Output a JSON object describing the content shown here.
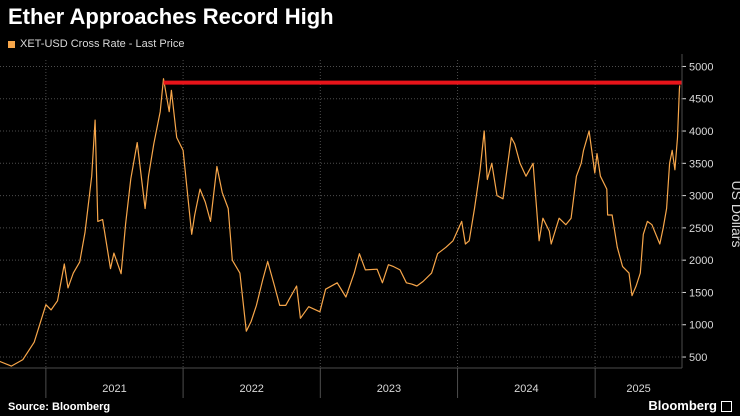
{
  "title": "Ether Approaches Record High",
  "legend_label": "XET-USD Cross Rate - Last Price",
  "source": "Source: Bloomberg",
  "brand": "Bloomberg",
  "colors": {
    "background": "#000000",
    "series": "#f7a64a",
    "reference_line": "#e8141a",
    "grid": "#4d4d4d",
    "text": "#d9d9d9"
  },
  "chart_data": {
    "type": "line",
    "ylabel": "US Dollars",
    "ylim": [
      330,
      5100
    ],
    "y_ticks": [
      500,
      1000,
      1500,
      2000,
      2500,
      3000,
      3500,
      4000,
      4500,
      5000
    ],
    "y_axis_side": "right",
    "x_ticks": [
      "2021",
      "2022",
      "2023",
      "2024",
      "2025"
    ],
    "grid": true,
    "legend_position": "top-left",
    "reference_line": 4750,
    "series": [
      {
        "name": "XET-USD Cross Rate - Last Price",
        "points": [
          [
            "2020-09-01",
            430
          ],
          [
            "2020-10-01",
            360
          ],
          [
            "2020-11-01",
            460
          ],
          [
            "2020-12-01",
            730
          ],
          [
            "2021-01-01",
            1310
          ],
          [
            "2021-01-15",
            1230
          ],
          [
            "2021-02-01",
            1370
          ],
          [
            "2021-02-19",
            1940
          ],
          [
            "2021-03-01",
            1570
          ],
          [
            "2021-03-15",
            1800
          ],
          [
            "2021-04-01",
            1970
          ],
          [
            "2021-04-15",
            2430
          ],
          [
            "2021-05-03",
            3300
          ],
          [
            "2021-05-12",
            4170
          ],
          [
            "2021-05-19",
            2600
          ],
          [
            "2021-06-01",
            2630
          ],
          [
            "2021-06-22",
            1870
          ],
          [
            "2021-07-01",
            2110
          ],
          [
            "2021-07-20",
            1790
          ],
          [
            "2021-08-01",
            2560
          ],
          [
            "2021-08-15",
            3260
          ],
          [
            "2021-09-01",
            3820
          ],
          [
            "2021-09-22",
            2800
          ],
          [
            "2021-10-01",
            3300
          ],
          [
            "2021-10-15",
            3800
          ],
          [
            "2021-11-01",
            4300
          ],
          [
            "2021-11-10",
            4810
          ],
          [
            "2021-11-25",
            4300
          ],
          [
            "2021-12-01",
            4630
          ],
          [
            "2021-12-15",
            3900
          ],
          [
            "2022-01-01",
            3700
          ],
          [
            "2022-01-24",
            2400
          ],
          [
            "2022-02-01",
            2700
          ],
          [
            "2022-02-15",
            3100
          ],
          [
            "2022-03-01",
            2900
          ],
          [
            "2022-03-15",
            2600
          ],
          [
            "2022-04-01",
            3450
          ],
          [
            "2022-04-15",
            3050
          ],
          [
            "2022-05-01",
            2800
          ],
          [
            "2022-05-12",
            2000
          ],
          [
            "2022-06-01",
            1800
          ],
          [
            "2022-06-18",
            900
          ],
          [
            "2022-07-01",
            1050
          ],
          [
            "2022-07-15",
            1300
          ],
          [
            "2022-08-01",
            1700
          ],
          [
            "2022-08-14",
            1980
          ],
          [
            "2022-09-01",
            1600
          ],
          [
            "2022-09-15",
            1300
          ],
          [
            "2022-10-01",
            1300
          ],
          [
            "2022-10-30",
            1600
          ],
          [
            "2022-11-09",
            1100
          ],
          [
            "2022-12-01",
            1280
          ],
          [
            "2022-12-31",
            1200
          ],
          [
            "2023-01-15",
            1550
          ],
          [
            "2023-02-15",
            1650
          ],
          [
            "2023-03-10",
            1430
          ],
          [
            "2023-04-01",
            1800
          ],
          [
            "2023-04-15",
            2100
          ],
          [
            "2023-05-01",
            1850
          ],
          [
            "2023-06-01",
            1860
          ],
          [
            "2023-06-15",
            1650
          ],
          [
            "2023-07-01",
            1930
          ],
          [
            "2023-07-15",
            1900
          ],
          [
            "2023-08-01",
            1850
          ],
          [
            "2023-08-18",
            1650
          ],
          [
            "2023-09-01",
            1630
          ],
          [
            "2023-09-15",
            1600
          ],
          [
            "2023-10-01",
            1670
          ],
          [
            "2023-10-24",
            1800
          ],
          [
            "2023-11-09",
            2100
          ],
          [
            "2023-12-01",
            2200
          ],
          [
            "2023-12-20",
            2300
          ],
          [
            "2024-01-12",
            2600
          ],
          [
            "2024-01-22",
            2250
          ],
          [
            "2024-02-01",
            2300
          ],
          [
            "2024-02-15",
            2800
          ],
          [
            "2024-03-01",
            3400
          ],
          [
            "2024-03-12",
            4000
          ],
          [
            "2024-03-20",
            3250
          ],
          [
            "2024-04-01",
            3500
          ],
          [
            "2024-04-15",
            3000
          ],
          [
            "2024-05-01",
            2950
          ],
          [
            "2024-05-23",
            3900
          ],
          [
            "2024-06-01",
            3800
          ],
          [
            "2024-06-15",
            3500
          ],
          [
            "2024-07-01",
            3300
          ],
          [
            "2024-07-20",
            3500
          ],
          [
            "2024-08-05",
            2300
          ],
          [
            "2024-08-15",
            2650
          ],
          [
            "2024-09-01",
            2450
          ],
          [
            "2024-09-06",
            2250
          ],
          [
            "2024-09-27",
            2650
          ],
          [
            "2024-10-15",
            2550
          ],
          [
            "2024-10-29",
            2650
          ],
          [
            "2024-11-12",
            3300
          ],
          [
            "2024-11-25",
            3500
          ],
          [
            "2024-12-01",
            3700
          ],
          [
            "2024-12-16",
            4000
          ],
          [
            "2024-12-31",
            3350
          ],
          [
            "2025-01-06",
            3650
          ],
          [
            "2025-01-15",
            3300
          ],
          [
            "2025-02-01",
            3100
          ],
          [
            "2025-02-03",
            2700
          ],
          [
            "2025-02-15",
            2700
          ],
          [
            "2025-03-01",
            2200
          ],
          [
            "2025-03-15",
            1900
          ],
          [
            "2025-04-01",
            1800
          ],
          [
            "2025-04-09",
            1450
          ],
          [
            "2025-04-20",
            1600
          ],
          [
            "2025-05-01",
            1800
          ],
          [
            "2025-05-09",
            2400
          ],
          [
            "2025-05-20",
            2600
          ],
          [
            "2025-06-01",
            2550
          ],
          [
            "2025-06-22",
            2250
          ],
          [
            "2025-07-01",
            2500
          ],
          [
            "2025-07-10",
            2800
          ],
          [
            "2025-07-18",
            3500
          ],
          [
            "2025-07-25",
            3700
          ],
          [
            "2025-08-01",
            3400
          ],
          [
            "2025-08-08",
            3900
          ],
          [
            "2025-08-13",
            4650
          ],
          [
            "2025-08-14",
            4700
          ]
        ]
      }
    ]
  }
}
